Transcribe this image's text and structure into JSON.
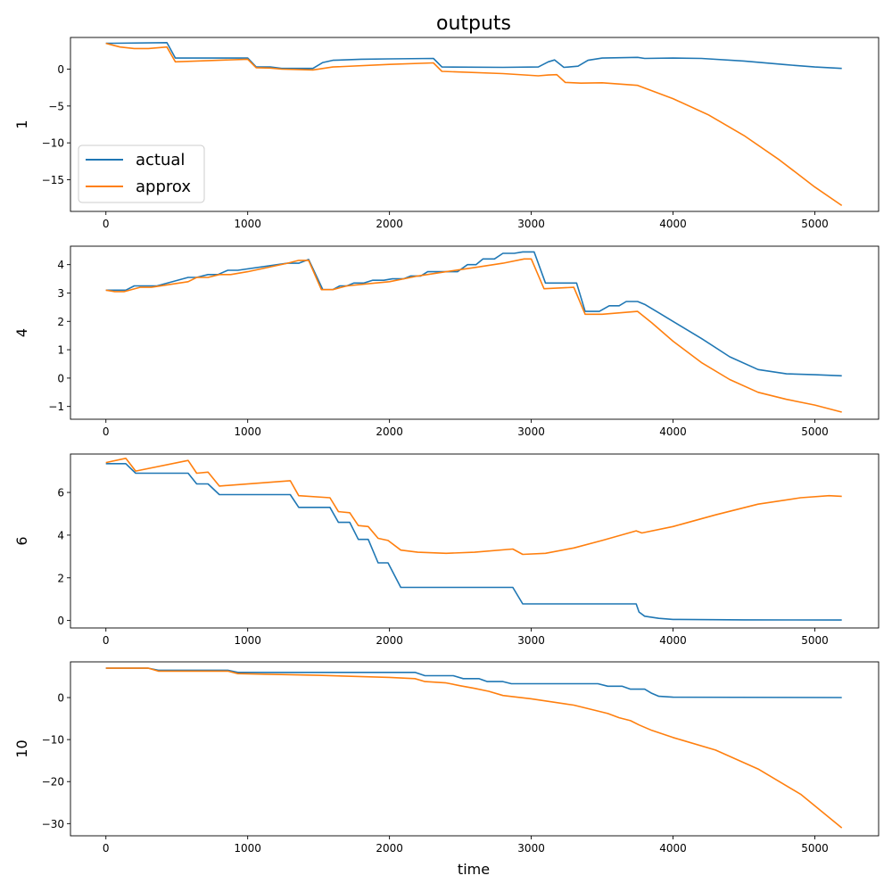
{
  "figure": {
    "title": "outputs",
    "xlabel": "time"
  },
  "legend": {
    "entries": [
      "actual",
      "approx"
    ],
    "placement": "lower-left of first panel"
  },
  "colors": {
    "actual": "#1f77b4",
    "approx": "#ff7f0e"
  },
  "chart_data": [
    {
      "type": "line",
      "ylabel": "1",
      "xlim": [
        -250,
        5450
      ],
      "ylim": [
        -19.3,
        4.3
      ],
      "xticks": [
        0,
        1000,
        2000,
        3000,
        4000,
        5000
      ],
      "yticks": [
        0,
        -5,
        -10,
        -15
      ],
      "series": [
        {
          "name": "actual",
          "x": [
            0,
            430,
            490,
            1000,
            1060,
            1160,
            1240,
            1460,
            1530,
            1600,
            1800,
            2000,
            2310,
            2370,
            2800,
            3050,
            3120,
            3165,
            3230,
            3330,
            3400,
            3500,
            3750,
            3800,
            4000,
            4200,
            4500,
            4800,
            5000,
            5190
          ],
          "y": [
            3.5,
            3.6,
            1.5,
            1.5,
            0.3,
            0.3,
            0.1,
            0.1,
            0.9,
            1.2,
            1.35,
            1.4,
            1.45,
            0.3,
            0.25,
            0.3,
            1.0,
            1.25,
            0.25,
            0.4,
            1.2,
            1.5,
            1.6,
            1.45,
            1.5,
            1.45,
            1.1,
            0.6,
            0.3,
            0.1
          ]
        },
        {
          "name": "approx",
          "x": [
            0,
            100,
            200,
            300,
            430,
            490,
            1000,
            1060,
            1160,
            1240,
            1460,
            1600,
            2000,
            2310,
            2370,
            2800,
            3050,
            3120,
            3180,
            3240,
            3350,
            3500,
            3750,
            4000,
            4250,
            4500,
            4750,
            5000,
            5190
          ],
          "y": [
            3.5,
            3.0,
            2.8,
            2.8,
            3.0,
            1.0,
            1.35,
            0.2,
            0.15,
            0.0,
            -0.1,
            0.3,
            0.65,
            0.85,
            -0.3,
            -0.6,
            -0.9,
            -0.8,
            -0.75,
            -1.8,
            -1.9,
            -1.85,
            -2.2,
            -4.0,
            -6.2,
            -9.0,
            -12.3,
            -16.0,
            -18.5
          ]
        }
      ]
    },
    {
      "type": "line",
      "ylabel": "4",
      "xlim": [
        -250,
        5450
      ],
      "ylim": [
        -1.45,
        4.65
      ],
      "xticks": [
        0,
        1000,
        2000,
        3000,
        4000,
        5000
      ],
      "yticks": [
        -1,
        0,
        1,
        2,
        3,
        4
      ],
      "series": [
        {
          "name": "actual",
          "x": [
            0,
            140,
            200,
            360,
            580,
            640,
            720,
            790,
            860,
            930,
            1280,
            1360,
            1430,
            1530,
            1600,
            1650,
            1700,
            1750,
            1820,
            1880,
            1960,
            2020,
            2100,
            2150,
            2220,
            2270,
            2480,
            2550,
            2610,
            2660,
            2740,
            2800,
            2880,
            2940,
            3020,
            3100,
            3320,
            3380,
            3480,
            3550,
            3620,
            3670,
            3750,
            3800,
            3900,
            4000,
            4200,
            4400,
            4600,
            4800,
            5000,
            5190
          ],
          "y": [
            3.1,
            3.1,
            3.25,
            3.25,
            3.55,
            3.55,
            3.65,
            3.65,
            3.8,
            3.8,
            4.05,
            4.05,
            4.18,
            3.12,
            3.12,
            3.25,
            3.25,
            3.35,
            3.35,
            3.45,
            3.45,
            3.5,
            3.5,
            3.6,
            3.6,
            3.75,
            3.75,
            4.0,
            4.0,
            4.2,
            4.2,
            4.4,
            4.4,
            4.45,
            4.45,
            3.35,
            3.35,
            2.35,
            2.35,
            2.55,
            2.55,
            2.7,
            2.7,
            2.6,
            2.3,
            2.0,
            1.4,
            0.75,
            0.3,
            0.15,
            0.12,
            0.08
          ]
        },
        {
          "name": "approx",
          "x": [
            0,
            60,
            130,
            240,
            320,
            580,
            640,
            720,
            800,
            880,
            1000,
            1280,
            1360,
            1430,
            1520,
            1600,
            1700,
            1900,
            2000,
            2100,
            2200,
            2400,
            2600,
            2800,
            2950,
            3000,
            3090,
            3300,
            3380,
            3500,
            3750,
            3850,
            4000,
            4200,
            4400,
            4600,
            4800,
            5000,
            5190
          ],
          "y": [
            3.1,
            3.05,
            3.05,
            3.2,
            3.2,
            3.4,
            3.55,
            3.55,
            3.65,
            3.65,
            3.75,
            4.05,
            4.15,
            4.15,
            3.12,
            3.12,
            3.25,
            3.35,
            3.4,
            3.5,
            3.6,
            3.75,
            3.9,
            4.05,
            4.2,
            4.2,
            3.15,
            3.2,
            2.25,
            2.25,
            2.35,
            1.95,
            1.3,
            0.55,
            -0.05,
            -0.5,
            -0.75,
            -0.95,
            -1.2
          ]
        }
      ]
    },
    {
      "type": "line",
      "ylabel": "6",
      "xlim": [
        -250,
        5450
      ],
      "ylim": [
        -0.35,
        7.8
      ],
      "xticks": [
        0,
        1000,
        2000,
        3000,
        4000,
        5000
      ],
      "yticks": [
        0,
        2,
        4,
        6
      ],
      "series": [
        {
          "name": "actual",
          "x": [
            0,
            140,
            210,
            580,
            640,
            720,
            800,
            1300,
            1360,
            1580,
            1640,
            1720,
            1780,
            1850,
            1920,
            1990,
            2080,
            2870,
            2940,
            3740,
            3760,
            3800,
            3900,
            4000,
            4500,
            5190
          ],
          "y": [
            7.35,
            7.35,
            6.9,
            6.9,
            6.4,
            6.4,
            5.9,
            5.9,
            5.3,
            5.3,
            4.6,
            4.6,
            3.8,
            3.8,
            2.7,
            2.7,
            1.55,
            1.55,
            0.78,
            0.78,
            0.4,
            0.2,
            0.1,
            0.05,
            0.03,
            0.02
          ]
        },
        {
          "name": "approx",
          "x": [
            0,
            140,
            210,
            580,
            640,
            720,
            800,
            1300,
            1360,
            1580,
            1640,
            1720,
            1780,
            1850,
            1920,
            1990,
            2080,
            2200,
            2400,
            2600,
            2870,
            2940,
            3100,
            3300,
            3500,
            3740,
            3780,
            4000,
            4300,
            4600,
            4900,
            5100,
            5190
          ],
          "y": [
            7.4,
            7.6,
            7.0,
            7.5,
            6.9,
            6.95,
            6.3,
            6.55,
            5.85,
            5.75,
            5.1,
            5.05,
            4.45,
            4.4,
            3.85,
            3.75,
            3.3,
            3.2,
            3.15,
            3.2,
            3.35,
            3.1,
            3.15,
            3.4,
            3.75,
            4.2,
            4.1,
            4.4,
            4.95,
            5.45,
            5.75,
            5.85,
            5.82
          ]
        }
      ]
    },
    {
      "type": "line",
      "ylabel": "10",
      "xlim": [
        -250,
        5450
      ],
      "ylim": [
        -32.9,
        8.5
      ],
      "xticks": [
        0,
        1000,
        2000,
        3000,
        4000,
        5000
      ],
      "yticks": [
        0,
        -10,
        -20,
        -30
      ],
      "series": [
        {
          "name": "actual",
          "x": [
            0,
            300,
            370,
            860,
            930,
            2180,
            2250,
            2450,
            2520,
            2630,
            2690,
            2800,
            2860,
            3470,
            3540,
            3640,
            3700,
            3800,
            3850,
            3900,
            4000,
            5190
          ],
          "y": [
            7.0,
            7.0,
            6.5,
            6.5,
            6.0,
            6.0,
            5.2,
            5.2,
            4.5,
            4.5,
            3.8,
            3.8,
            3.3,
            3.3,
            2.7,
            2.7,
            2.0,
            2.0,
            1.0,
            0.3,
            0.1,
            0.0
          ]
        },
        {
          "name": "approx",
          "x": [
            0,
            300,
            370,
            860,
            930,
            1500,
            2000,
            2180,
            2250,
            2400,
            2500,
            2600,
            2700,
            2800,
            3000,
            3300,
            3470,
            3540,
            3620,
            3700,
            3760,
            3850,
            4000,
            4300,
            4600,
            4900,
            5190
          ],
          "y": [
            7.0,
            7.0,
            6.3,
            6.3,
            5.7,
            5.3,
            4.8,
            4.5,
            3.8,
            3.5,
            2.8,
            2.2,
            1.5,
            0.5,
            -0.3,
            -1.8,
            -3.2,
            -3.8,
            -4.8,
            -5.5,
            -6.5,
            -7.8,
            -9.5,
            -12.5,
            -17.0,
            -23.0,
            -31.0
          ]
        }
      ]
    }
  ]
}
